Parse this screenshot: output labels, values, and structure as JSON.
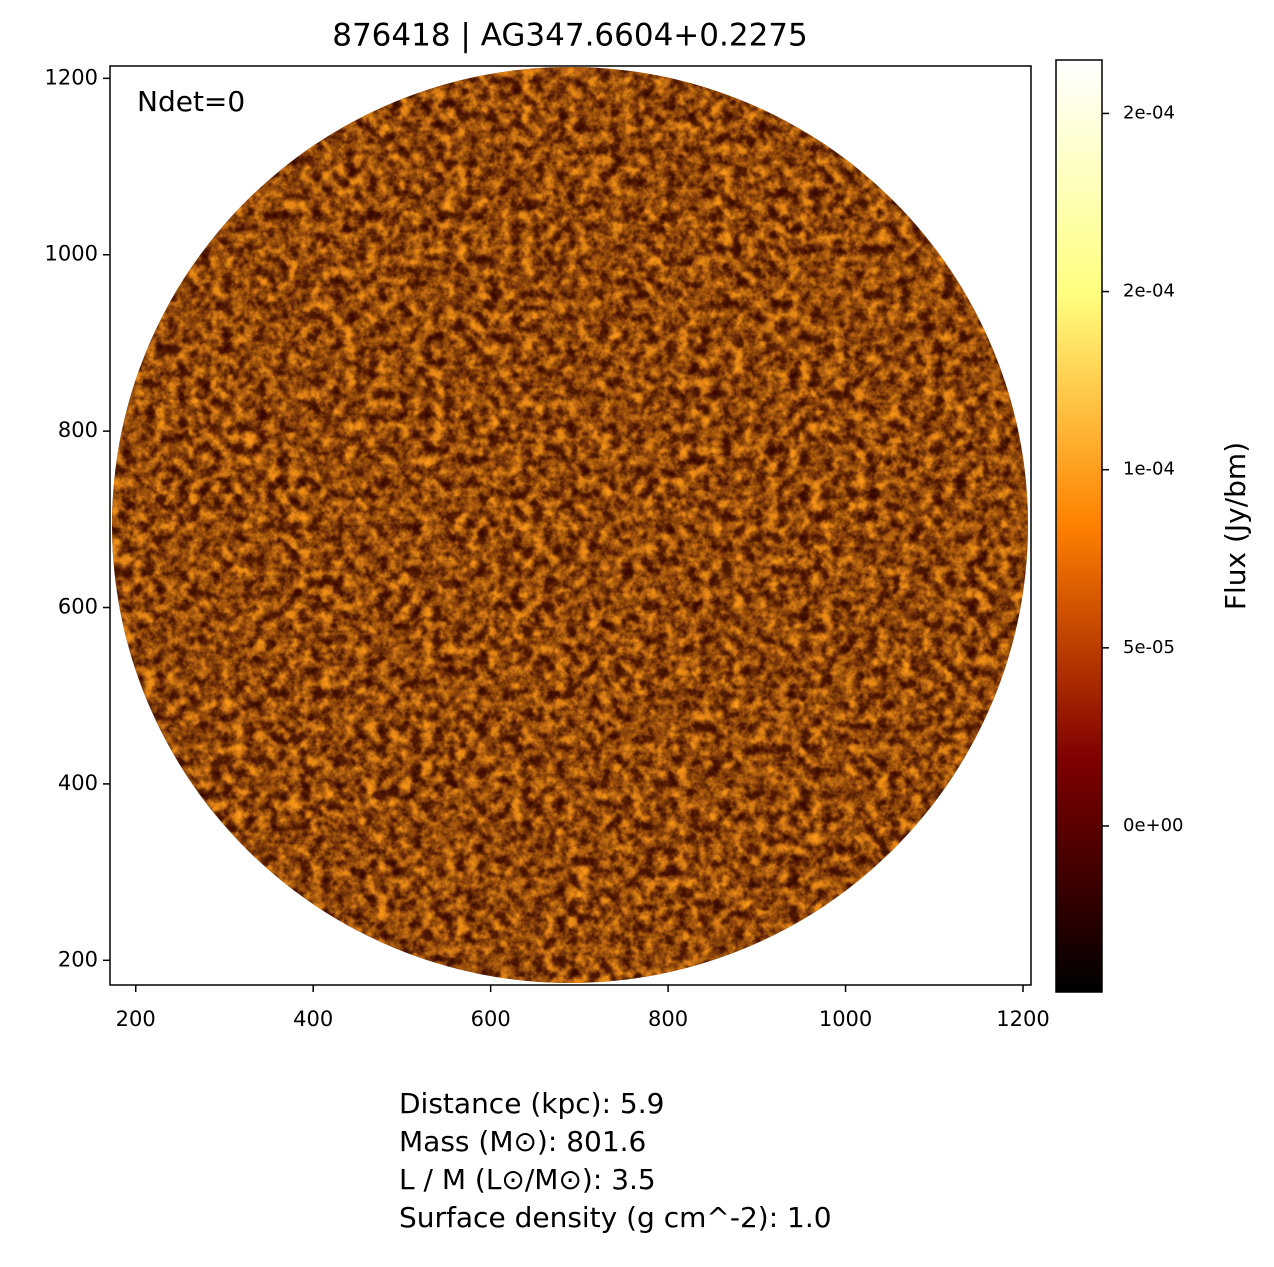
{
  "chart_data": {
    "type": "image",
    "title": "876418 | AG347.6604+0.2275",
    "annotation": "Ndet=0",
    "xlim": [
      171,
      1209
    ],
    "xticks": [
      200,
      400,
      600,
      800,
      1000,
      1200
    ],
    "ylim": [
      172,
      1214
    ],
    "yticks": [
      200,
      400,
      600,
      800,
      1000,
      1200
    ],
    "colorbar": {
      "label": "Flux (Jy/bm)",
      "lim": [
        -4.66e-05,
        0.000215
      ],
      "ticks": [
        {
          "value": 0,
          "label": "0e+00"
        },
        {
          "value": 5e-05,
          "label": "5e-05"
        },
        {
          "value": 0.0001,
          "label": "1e-04"
        },
        {
          "value": 0.00015,
          "label": "2e-04"
        },
        {
          "value": 0.0002,
          "label": "2e-04"
        }
      ]
    },
    "info_lines": [
      "Distance (kpc): 5.9",
      "Mass (M⊙): 801.6",
      "L / M (L⊙/M⊙): 3.5",
      "Surface density (g cm^-2): 1.0"
    ]
  }
}
